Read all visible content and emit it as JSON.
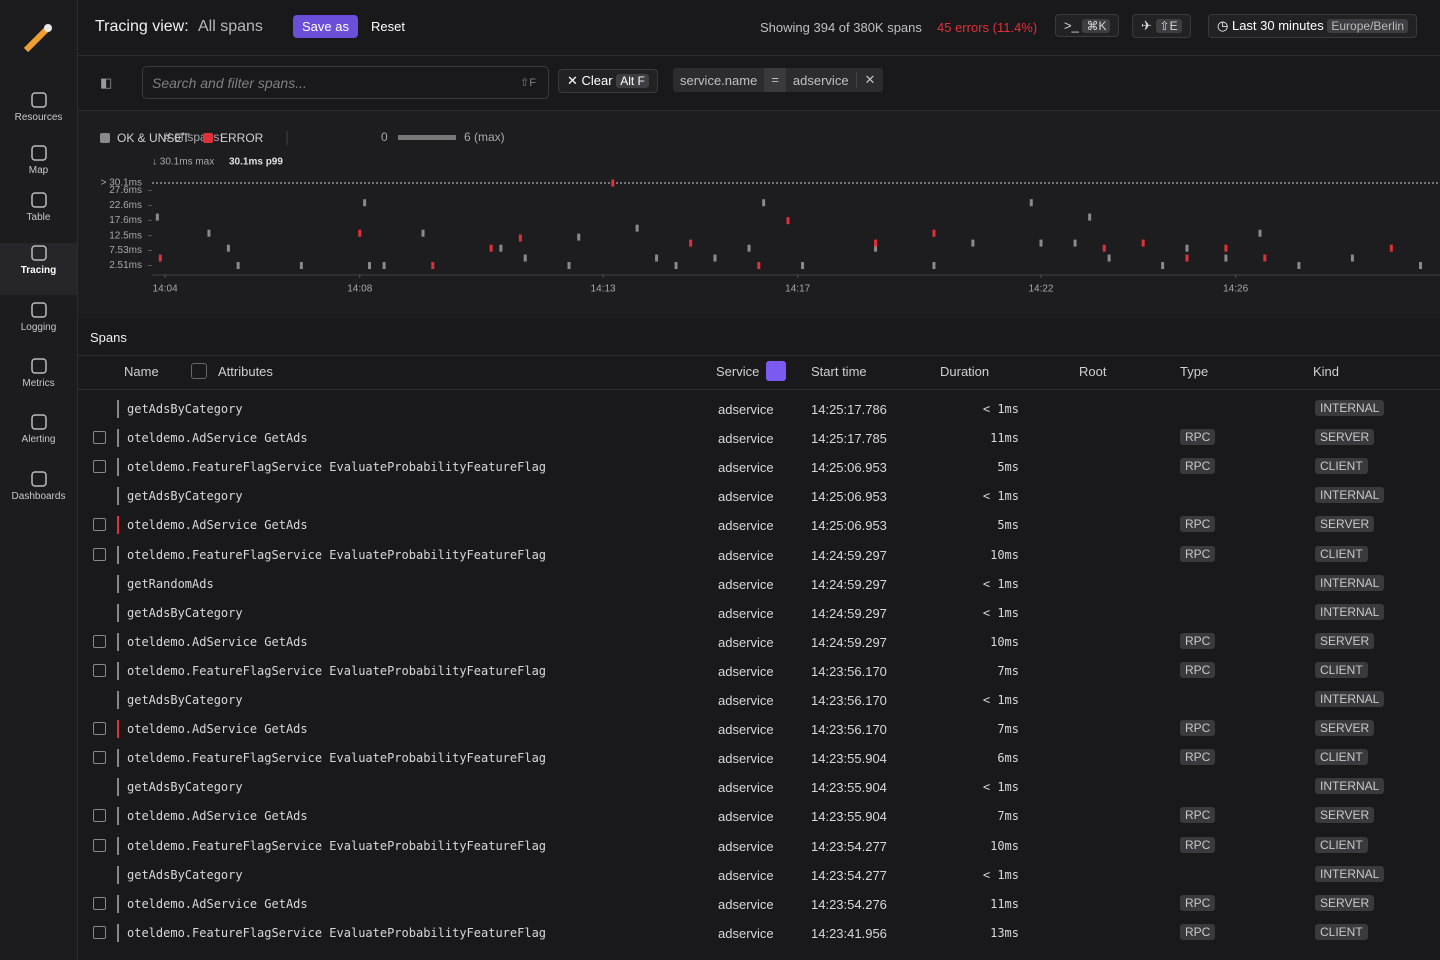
{
  "sidebar": {
    "items": [
      "Resources",
      "Map",
      "Table",
      "Tracing",
      "Logging",
      "Metrics",
      "Alerting",
      "Dashboards"
    ],
    "active": "Tracing"
  },
  "header": {
    "title": "Tracing view:",
    "view": "All spans",
    "save": "Save as",
    "reset": "Reset",
    "showing": "Showing 394 of 380K spans",
    "errors": "45 errors (11.4%)",
    "command_key": "⌘K",
    "explore_key": "⇧E",
    "time_range": "Last 30 minutes",
    "timezone": "Europe/Berlin"
  },
  "filter": {
    "placeholder": "Search and filter spans...",
    "shortcut": "⇧F",
    "clear": "Clear",
    "clear_key": "Alt F",
    "chip": {
      "key": "service.name",
      "operator": "=",
      "value": "adservice"
    }
  },
  "chart_data": {
    "type": "scatter",
    "count_label": "# of spans:",
    "count_min": "0",
    "count_max": "6 (max)",
    "max_label": "↓ 30.1ms max",
    "p99_label": "30.1ms p99",
    "xlim": [
      3.73,
      30.2
    ],
    "xticks": [
      {
        "value": 4,
        "label": "14:04"
      },
      {
        "value": 8,
        "label": "14:08"
      },
      {
        "value": 13,
        "label": "14:13"
      },
      {
        "value": 17,
        "label": "14:17"
      },
      {
        "value": 22,
        "label": "14:22"
      },
      {
        "value": 26,
        "label": "14:26"
      }
    ],
    "ylim": [
      0,
      30.1
    ],
    "yticks": [
      {
        "value": 2.51,
        "label": "2.51ms"
      },
      {
        "value": 7.53,
        "label": "7.53ms"
      },
      {
        "value": 12.5,
        "label": "12.5ms"
      },
      {
        "value": 17.6,
        "label": "17.6ms"
      },
      {
        "value": 22.6,
        "label": "22.6ms"
      },
      {
        "value": 27.6,
        "label": "27.6ms"
      },
      {
        "value": 30.1,
        "label": "> 30.1ms"
      }
    ],
    "series": [
      {
        "name": "OK & UNSET",
        "color": "#8a8a8e",
        "x": [
          3.84,
          4.9,
          5.3,
          5.5,
          6.8,
          8.1,
          8.2,
          9.3,
          10.9,
          11.4,
          12.3,
          13.7,
          14.1,
          15.3,
          16.0,
          17.1,
          16.3,
          18.6,
          19.8,
          20.6,
          21.8,
          22.0,
          23.0,
          23.4,
          24.5,
          25.0,
          25.8,
          26.5,
          27.3,
          28.4,
          29.8,
          22.7,
          14.5,
          12.5,
          8.5
        ],
        "values": [
          18.7,
          13.3,
          8.3,
          2.5,
          2.5,
          23.5,
          2.5,
          13.3,
          8.3,
          5,
          2.5,
          15,
          5,
          5,
          8.3,
          2.5,
          23.5,
          8.3,
          2.5,
          10,
          23.5,
          10,
          18.7,
          5,
          2.5,
          8.3,
          5,
          13.3,
          2.5,
          5,
          2.5,
          10,
          2.5,
          12,
          2.5
        ]
      },
      {
        "name": "ERROR",
        "color": "#e0303a",
        "x": [
          3.9,
          8.0,
          9.5,
          10.7,
          11.3,
          13.2,
          14.8,
          16.2,
          16.8,
          18.6,
          19.8,
          23.3,
          24.1,
          25.0,
          25.8,
          26.6,
          29.2
        ],
        "values": [
          5,
          13.3,
          2.5,
          8.3,
          11.7,
          30.1,
          10,
          2.5,
          17.5,
          10,
          13.3,
          8.3,
          10,
          5,
          8.3,
          5,
          8.3
        ]
      }
    ]
  },
  "table": {
    "title": "Spans",
    "columns": [
      "Name",
      "Attributes",
      "Service",
      "Start time",
      "Duration",
      "Root",
      "Type",
      "Kind"
    ],
    "rows": [
      {
        "name": "getAdsByCategory",
        "service": "adservice",
        "start": "14:25:17.786",
        "duration": "< 1ms",
        "type": null,
        "kind": "INTERNAL",
        "error": false
      },
      {
        "name": "oteldemo.AdService GetAds",
        "service": "adservice",
        "start": "14:25:17.785",
        "duration": "11ms",
        "type": "RPC",
        "kind": "SERVER",
        "error": false
      },
      {
        "name": "oteldemo.FeatureFlagService EvaluateProbabilityFeatureFlag",
        "service": "adservice",
        "start": "14:25:06.953",
        "duration": "5ms",
        "type": "RPC",
        "kind": "CLIENT",
        "error": false
      },
      {
        "name": "getAdsByCategory",
        "service": "adservice",
        "start": "14:25:06.953",
        "duration": "< 1ms",
        "type": null,
        "kind": "INTERNAL",
        "error": false
      },
      {
        "name": "oteldemo.AdService GetAds",
        "service": "adservice",
        "start": "14:25:06.953",
        "duration": "5ms",
        "type": "RPC",
        "kind": "SERVER",
        "error": true
      },
      {
        "name": "oteldemo.FeatureFlagService EvaluateProbabilityFeatureFlag",
        "service": "adservice",
        "start": "14:24:59.297",
        "duration": "10ms",
        "type": "RPC",
        "kind": "CLIENT",
        "error": false
      },
      {
        "name": "getRandomAds",
        "service": "adservice",
        "start": "14:24:59.297",
        "duration": "< 1ms",
        "type": null,
        "kind": "INTERNAL",
        "error": false
      },
      {
        "name": "getAdsByCategory",
        "service": "adservice",
        "start": "14:24:59.297",
        "duration": "< 1ms",
        "type": null,
        "kind": "INTERNAL",
        "error": false
      },
      {
        "name": "oteldemo.AdService GetAds",
        "service": "adservice",
        "start": "14:24:59.297",
        "duration": "10ms",
        "type": "RPC",
        "kind": "SERVER",
        "error": false
      },
      {
        "name": "oteldemo.FeatureFlagService EvaluateProbabilityFeatureFlag",
        "service": "adservice",
        "start": "14:23:56.170",
        "duration": "7ms",
        "type": "RPC",
        "kind": "CLIENT",
        "error": false
      },
      {
        "name": "getAdsByCategory",
        "service": "adservice",
        "start": "14:23:56.170",
        "duration": "< 1ms",
        "type": null,
        "kind": "INTERNAL",
        "error": false
      },
      {
        "name": "oteldemo.AdService GetAds",
        "service": "adservice",
        "start": "14:23:56.170",
        "duration": "7ms",
        "type": "RPC",
        "kind": "SERVER",
        "error": true
      },
      {
        "name": "oteldemo.FeatureFlagService EvaluateProbabilityFeatureFlag",
        "service": "adservice",
        "start": "14:23:55.904",
        "duration": "6ms",
        "type": "RPC",
        "kind": "CLIENT",
        "error": false
      },
      {
        "name": "getAdsByCategory",
        "service": "adservice",
        "start": "14:23:55.904",
        "duration": "< 1ms",
        "type": null,
        "kind": "INTERNAL",
        "error": false
      },
      {
        "name": "oteldemo.AdService GetAds",
        "service": "adservice",
        "start": "14:23:55.904",
        "duration": "7ms",
        "type": "RPC",
        "kind": "SERVER",
        "error": false
      },
      {
        "name": "oteldemo.FeatureFlagService EvaluateProbabilityFeatureFlag",
        "service": "adservice",
        "start": "14:23:54.277",
        "duration": "10ms",
        "type": "RPC",
        "kind": "CLIENT",
        "error": false
      },
      {
        "name": "getAdsByCategory",
        "service": "adservice",
        "start": "14:23:54.277",
        "duration": "< 1ms",
        "type": null,
        "kind": "INTERNAL",
        "error": false
      },
      {
        "name": "oteldemo.AdService GetAds",
        "service": "adservice",
        "start": "14:23:54.276",
        "duration": "11ms",
        "type": "RPC",
        "kind": "SERVER",
        "error": false
      },
      {
        "name": "oteldemo.FeatureFlagService EvaluateProbabilityFeatureFlag",
        "service": "adservice",
        "start": "14:23:41.956",
        "duration": "13ms",
        "type": "RPC",
        "kind": "CLIENT",
        "error": false
      }
    ]
  }
}
